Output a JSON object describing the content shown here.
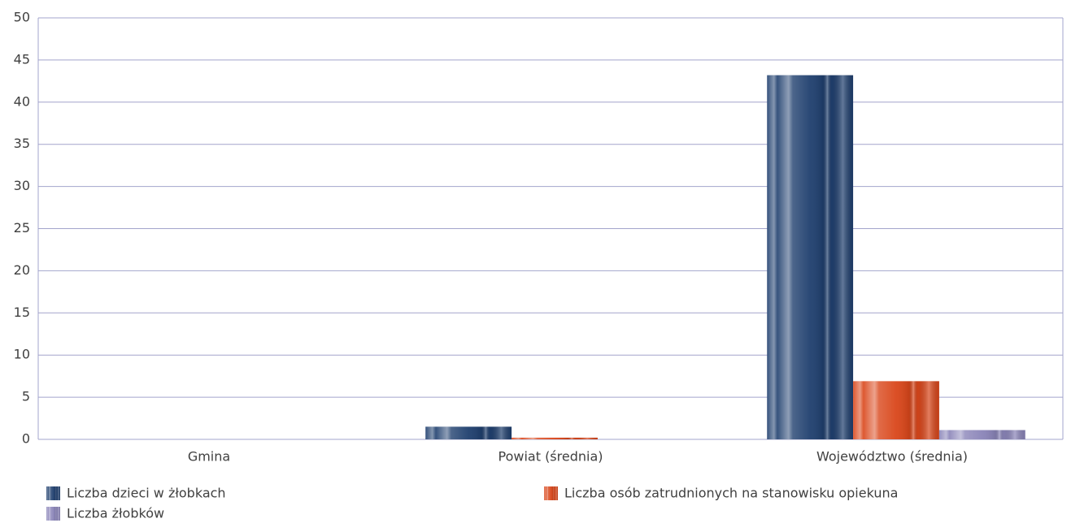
{
  "chart_data": {
    "type": "bar",
    "categories": [
      "Gmina",
      "Powiat (średnia)",
      "Województwo (średnia)"
    ],
    "series": [
      {
        "name": "Liczba dzieci w żłobkach",
        "color": "#1f3f6e",
        "values": [
          0,
          1.5,
          43.2
        ]
      },
      {
        "name": "Liczba osób zatrudnionych na stanowisku opiekuna",
        "color": "#d9461a",
        "values": [
          0,
          0.2,
          6.9
        ]
      },
      {
        "name": "Liczba żłobków",
        "color": "#8a84b8",
        "values": [
          0,
          0,
          1.1
        ]
      }
    ],
    "ylim": [
      0,
      50
    ],
    "yticks": [
      0,
      5,
      10,
      15,
      20,
      25,
      30,
      35,
      40,
      45,
      50
    ],
    "grid": true,
    "legend": "bottom"
  }
}
